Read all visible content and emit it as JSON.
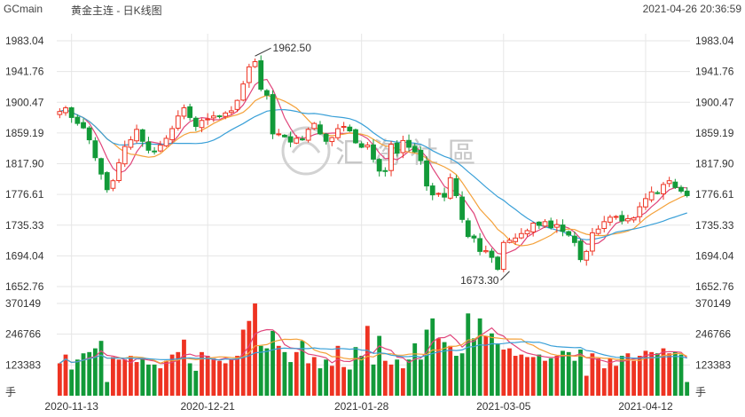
{
  "header": {
    "symbol": "GCmain",
    "title": "黄金主连 - 日K线图",
    "timestamp": "2021-04-26 20:36:59"
  },
  "watermark": "汇 淘 社 區",
  "volume_unit": "手",
  "colors": {
    "up": "#ee3322",
    "down": "#129a39",
    "ma_short": "#e0457b",
    "ma_mid": "#f4a13a",
    "ma_long": "#3aa0d8",
    "grid": "#e6e6e6"
  },
  "chart_data": {
    "type": "candlestick",
    "price_axis": {
      "range": [
        1652.76,
        1983.04
      ],
      "ticks": [
        "1983.04",
        "1941.76",
        "1900.47",
        "1859.19",
        "1817.90",
        "1776.61",
        "1735.33",
        "1694.04",
        "1652.76"
      ]
    },
    "volume_axis": {
      "range": [
        0,
        370149
      ],
      "ticks": [
        "370149",
        "246766",
        "123383"
      ]
    },
    "date_labels": [
      {
        "label": "2020-11-13",
        "index": 2
      },
      {
        "label": "2020-12-21",
        "index": 25
      },
      {
        "label": "2021-01-28",
        "index": 51
      },
      {
        "label": "2021-03-05",
        "index": 75
      },
      {
        "label": "2021-04-12",
        "index": 99
      }
    ],
    "annotations": [
      {
        "label": "1962.50",
        "index": 33,
        "type": "high"
      },
      {
        "label": "1673.30",
        "index": 76,
        "type": "low"
      }
    ],
    "closes": [
      1888,
      1893,
      1880,
      1872,
      1866,
      1850,
      1826,
      1804,
      1783,
      1795,
      1819,
      1841,
      1850,
      1864,
      1848,
      1836,
      1834,
      1843,
      1852,
      1865,
      1882,
      1893,
      1880,
      1868,
      1876,
      1878,
      1882,
      1882,
      1886,
      1889,
      1903,
      1925,
      1948,
      1955,
      1918,
      1910,
      1858,
      1858,
      1854,
      1847,
      1852,
      1850,
      1864,
      1872,
      1858,
      1848,
      1853,
      1865,
      1868,
      1862,
      1846,
      1840,
      1843,
      1824,
      1808,
      1808,
      1844,
      1832,
      1849,
      1840,
      1834,
      1822,
      1788,
      1776,
      1778,
      1773,
      1799,
      1775,
      1743,
      1720,
      1718,
      1700,
      1701,
      1692,
      1676,
      1712,
      1715,
      1718,
      1724,
      1728,
      1738,
      1735,
      1740,
      1732,
      1736,
      1727,
      1722,
      1712,
      1689,
      1700,
      1725,
      1730,
      1740,
      1746,
      1747,
      1741,
      1744,
      1745,
      1760,
      1771,
      1780,
      1778,
      1790,
      1795,
      1786,
      1781,
      1775
    ],
    "volume_series": [
      130000,
      165000,
      105000,
      145000,
      170000,
      175000,
      190000,
      220000,
      55000,
      155000,
      145000,
      145000,
      160000,
      135000,
      150000,
      125000,
      125000,
      110000,
      140000,
      165000,
      175000,
      225000,
      130000,
      100000,
      175000,
      160000,
      150000,
      140000,
      130000,
      145000,
      160000,
      265000,
      300000,
      370000,
      200000,
      190000,
      260000,
      200000,
      175000,
      135000,
      175000,
      220000,
      130000,
      155000,
      110000,
      145000,
      120000,
      200000,
      115000,
      105000,
      195000,
      160000,
      280000,
      125000,
      240000,
      140000,
      125000,
      145000,
      110000,
      145000,
      210000,
      145000,
      265000,
      310000,
      230000,
      215000,
      200000,
      160000,
      170000,
      330000,
      230000,
      310000,
      240000,
      250000,
      210000,
      185000,
      190000,
      160000,
      165000,
      155000,
      155000,
      165000,
      140000,
      150000,
      160000,
      180000,
      175000,
      140000,
      185000,
      80000,
      170000,
      150000,
      110000,
      150000,
      120000,
      160000,
      170000,
      140000,
      160000,
      180000,
      175000,
      170000,
      190000,
      170000,
      175000,
      165000,
      55000
    ]
  }
}
